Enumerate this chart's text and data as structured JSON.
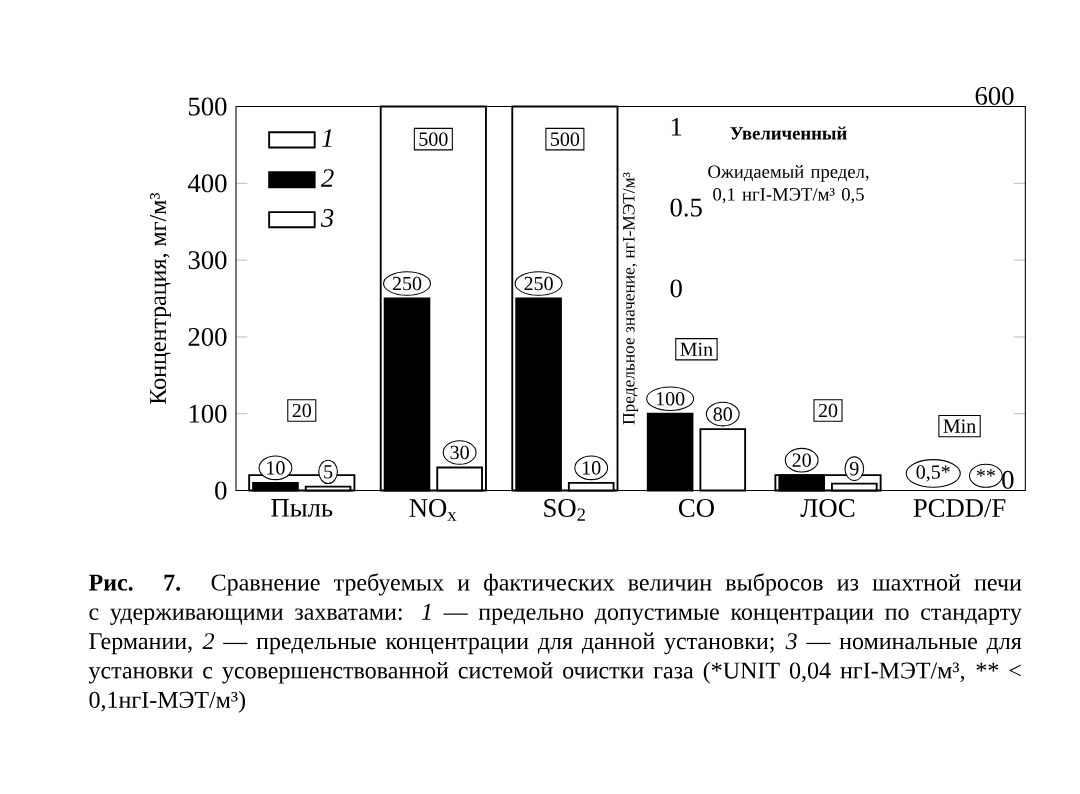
{
  "chart_data": {
    "type": "bar",
    "categories": [
      "Пыль",
      "NO$_{x}$",
      "SO$_{2}$",
      "CO",
      "ЛОС",
      "PCDD/F"
    ],
    "ylabel": "Концентрация, мг/м³",
    "y2label": "Предельное значение, нгI-МЭТ/м³",
    "ylim": [
      0,
      500
    ],
    "yticks": [
      0,
      100,
      200,
      300,
      400,
      500
    ],
    "y2lim": [
      -1.25,
      1.125
    ],
    "y2ticks": [
      0,
      0.5,
      1
    ],
    "y3lim": [
      0,
      600
    ],
    "y3ticks": [
      0,
      600
    ],
    "legend": "top left",
    "series": [
      {
        "name": "1",
        "color": "#ffffff",
        "values": [
          20,
          500,
          500,
          null,
          20,
          null
        ],
        "value_labels": [
          "20",
          "500",
          "500",
          "Min",
          "20",
          "Min"
        ]
      },
      {
        "name": "2",
        "color": "#000000",
        "values": [
          10,
          250,
          250,
          100,
          20,
          null
        ],
        "value_labels": [
          "10",
          "250",
          "250",
          "100",
          "20",
          "0,5*"
        ]
      },
      {
        "name": "3",
        "color": "#ffffff",
        "values": [
          5,
          30,
          10,
          80,
          9,
          null
        ],
        "value_labels": [
          "5",
          "30",
          "10",
          "80",
          "9",
          "**"
        ]
      }
    ],
    "annotations": [
      "Увеличенный",
      "Ожидаемый предел, 0,1 нгI-МЭТ/м³ 0,5",
      "**Рис. 7.** Сравнение требуемых и фактических величин выбросов из шахтной печи с удерживающими захватами: *1* — предельно допустимые концентрации по стандарту Германии, *2* — предельные концентрации для данной установки; *3* — номинальные для установки с усовершенствованной системой очистки газа (*UNIT 0,04 нгI-МЭТ/м³, ** < 0,1нгI-МЭТ/м³)"
    ]
  }
}
